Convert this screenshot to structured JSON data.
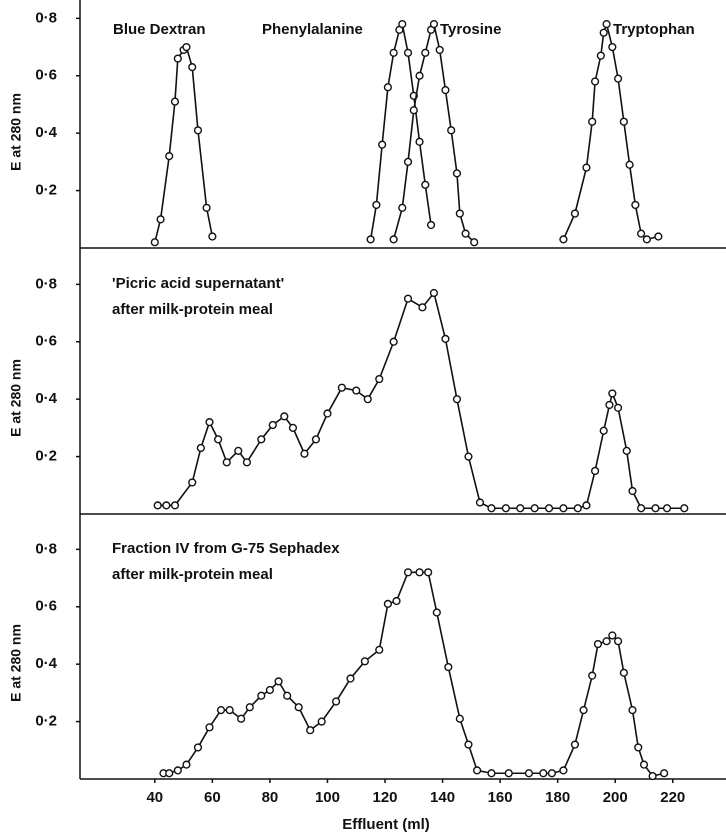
{
  "chart_data": [
    {
      "type": "line",
      "ylabel": "E at 280 nm",
      "xlim": [
        14,
        238.5
      ],
      "ylim": [
        0,
        0.85
      ],
      "yticks": [
        {
          "value": 0.2,
          "label": "0·2"
        },
        {
          "value": 0.4,
          "label": "0·4"
        },
        {
          "value": 0.6,
          "label": "0·6"
        },
        {
          "value": 0.8,
          "label": "0·8"
        }
      ],
      "series": [
        {
          "name": "Blue Dextran",
          "color": "#111111",
          "x": [
            40,
            42,
            45,
            47,
            48,
            50,
            51,
            53,
            55,
            58,
            60
          ],
          "values": [
            0.02,
            0.1,
            0.32,
            0.51,
            0.66,
            0.69,
            0.7,
            0.63,
            0.41,
            0.14,
            0.04
          ]
        },
        {
          "name": "Phenylalanine",
          "color": "#111111",
          "x": [
            115,
            117,
            119,
            121,
            123,
            125,
            126,
            128,
            130,
            132,
            134,
            136
          ],
          "values": [
            0.03,
            0.15,
            0.36,
            0.56,
            0.68,
            0.76,
            0.78,
            0.68,
            0.53,
            0.37,
            0.22,
            0.08
          ]
        },
        {
          "name": "Tyrosine",
          "color": "#111111",
          "x": [
            123,
            126,
            128,
            130,
            132,
            134,
            136,
            137,
            139,
            141,
            143,
            145,
            146,
            148,
            151
          ],
          "values": [
            0.03,
            0.14,
            0.3,
            0.48,
            0.6,
            0.68,
            0.76,
            0.78,
            0.69,
            0.55,
            0.41,
            0.26,
            0.12,
            0.05,
            0.02
          ]
        },
        {
          "name": "Tryptophan",
          "color": "#111111",
          "x": [
            182,
            186,
            190,
            192,
            193,
            195,
            196,
            197,
            199,
            201,
            203,
            205,
            207,
            209,
            211,
            215
          ],
          "values": [
            0.03,
            0.12,
            0.28,
            0.44,
            0.58,
            0.67,
            0.75,
            0.78,
            0.7,
            0.59,
            0.44,
            0.29,
            0.15,
            0.05,
            0.03,
            0.04
          ]
        }
      ]
    },
    {
      "type": "line",
      "ylabel": "E at 280 nm",
      "annotations": [
        "'Picric acid supernatant'",
        "after milk-protein meal"
      ],
      "xlim": [
        14,
        238.5
      ],
      "ylim": [
        0,
        0.85
      ],
      "yticks": [
        {
          "value": 0.2,
          "label": "0·2"
        },
        {
          "value": 0.4,
          "label": "0·4"
        },
        {
          "value": 0.6,
          "label": "0·6"
        },
        {
          "value": 0.8,
          "label": "0·8"
        }
      ],
      "series": [
        {
          "color": "#111111",
          "x": [
            41,
            44,
            47,
            53,
            56,
            59,
            62,
            65,
            69,
            72,
            77,
            81,
            85,
            88,
            92,
            96,
            100,
            105,
            110,
            114,
            118,
            123,
            128,
            133,
            137,
            141,
            145,
            149,
            153,
            157,
            162,
            167,
            172,
            177,
            182,
            187,
            190,
            193,
            196,
            198,
            199,
            201,
            204,
            206,
            209,
            214,
            218,
            224
          ],
          "values": [
            0.03,
            0.03,
            0.03,
            0.11,
            0.23,
            0.32,
            0.26,
            0.18,
            0.22,
            0.18,
            0.26,
            0.31,
            0.34,
            0.3,
            0.21,
            0.26,
            0.35,
            0.44,
            0.43,
            0.4,
            0.47,
            0.6,
            0.75,
            0.72,
            0.77,
            0.61,
            0.4,
            0.2,
            0.04,
            0.02,
            0.02,
            0.02,
            0.02,
            0.02,
            0.02,
            0.02,
            0.03,
            0.15,
            0.29,
            0.38,
            0.42,
            0.37,
            0.22,
            0.08,
            0.02,
            0.02,
            0.02,
            0.02
          ]
        }
      ]
    },
    {
      "type": "line",
      "ylabel": "E at 280 nm",
      "xlabel": "Effluent (ml)",
      "annotations": [
        "Fraction IV from G-75 Sephadex",
        "after milk-protein meal"
      ],
      "xlim": [
        14,
        238.5
      ],
      "ylim": [
        0,
        0.85
      ],
      "xticks": [
        40,
        60,
        80,
        100,
        120,
        140,
        160,
        180,
        200,
        220
      ],
      "yticks": [
        {
          "value": 0.2,
          "label": "0·2"
        },
        {
          "value": 0.4,
          "label": "0·4"
        },
        {
          "value": 0.6,
          "label": "0·6"
        },
        {
          "value": 0.8,
          "label": "0·8"
        }
      ],
      "series": [
        {
          "color": "#111111",
          "x": [
            43,
            45,
            48,
            51,
            55,
            59,
            63,
            66,
            70,
            73,
            77,
            80,
            83,
            86,
            90,
            94,
            98,
            103,
            108,
            113,
            118,
            121,
            124,
            128,
            132,
            135,
            138,
            142,
            146,
            149,
            152,
            157,
            163,
            170,
            175,
            178,
            182,
            186,
            189,
            192,
            194,
            197,
            199,
            201,
            203,
            206,
            208,
            210,
            213,
            217
          ],
          "values": [
            0.02,
            0.02,
            0.03,
            0.05,
            0.11,
            0.18,
            0.24,
            0.24,
            0.21,
            0.25,
            0.29,
            0.31,
            0.34,
            0.29,
            0.25,
            0.17,
            0.2,
            0.27,
            0.35,
            0.41,
            0.45,
            0.61,
            0.62,
            0.72,
            0.72,
            0.72,
            0.58,
            0.39,
            0.21,
            0.12,
            0.03,
            0.02,
            0.02,
            0.02,
            0.02,
            0.02,
            0.03,
            0.12,
            0.24,
            0.36,
            0.47,
            0.48,
            0.5,
            0.48,
            0.37,
            0.24,
            0.11,
            0.05,
            0.01,
            0.02
          ]
        }
      ]
    }
  ]
}
